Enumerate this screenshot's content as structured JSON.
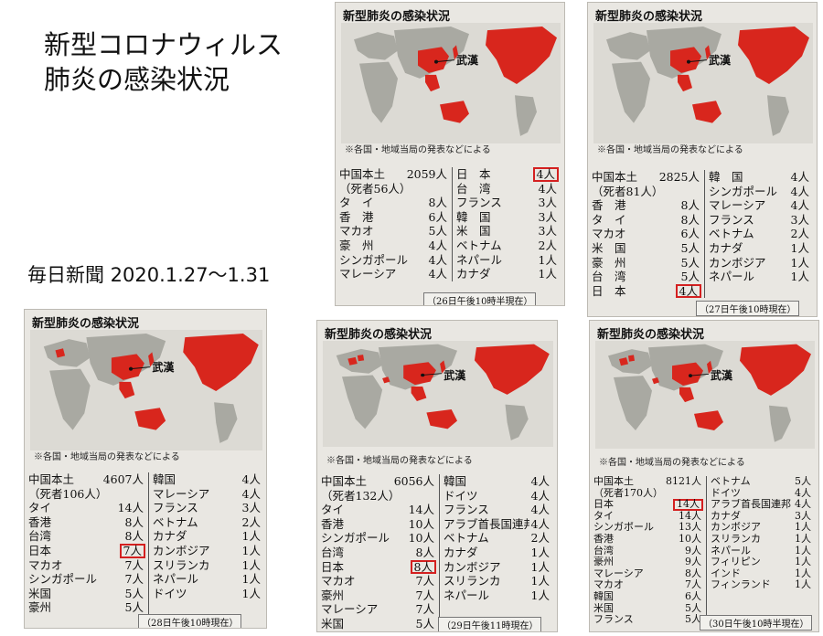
{
  "heading": {
    "line1": "新型コロナウィルス",
    "line2": "肺炎の感染状況"
  },
  "source": "毎日新聞 2020.1.27〜1.31",
  "colors": {
    "infected": "#d8261d",
    "land": "#a9a9a2",
    "sea": "#dcdad4",
    "highlight": "#d42020"
  },
  "clips": [
    {
      "title": "新型肺炎の感染状況",
      "wuhan": "武漢",
      "note": "※各国・地域当局の発表などによる",
      "left": [
        {
          "name": "中国本土",
          "value": "2059人"
        },
        {
          "name": "（死者56人）",
          "value": ""
        },
        {
          "name": "タ　イ",
          "value": "8人"
        },
        {
          "name": "香　港",
          "value": "6人"
        },
        {
          "name": "マカオ",
          "value": "5人"
        },
        {
          "name": "豪　州",
          "value": "4人"
        },
        {
          "name": "シンガポール",
          "value": "4人"
        },
        {
          "name": "マレーシア",
          "value": "4人"
        }
      ],
      "right": [
        {
          "name": "日　本",
          "value": "4人",
          "hl": true
        },
        {
          "name": "台　湾",
          "value": "4人"
        },
        {
          "name": "フランス",
          "value": "3人"
        },
        {
          "name": "韓　国",
          "value": "3人"
        },
        {
          "name": "米　国",
          "value": "3人"
        },
        {
          "name": "ベトナム",
          "value": "2人"
        },
        {
          "name": "ネパール",
          "value": "1人"
        },
        {
          "name": "カナダ",
          "value": "1人"
        }
      ],
      "footnote": "（26日午後10時半現在）"
    },
    {
      "title": "新型肺炎の感染状況",
      "wuhan": "武漢",
      "note": "※各国・地域当局の発表などによる",
      "left": [
        {
          "name": "中国本土",
          "value": "2825人"
        },
        {
          "name": "（死者81人）",
          "value": ""
        },
        {
          "name": "香　港",
          "value": "8人"
        },
        {
          "name": "タ　イ",
          "value": "8人"
        },
        {
          "name": "マカオ",
          "value": "6人"
        },
        {
          "name": "米　国",
          "value": "5人"
        },
        {
          "name": "豪　州",
          "value": "5人"
        },
        {
          "name": "台　湾",
          "value": "5人"
        },
        {
          "name": "日　本",
          "value": "4人",
          "hl": true
        }
      ],
      "right": [
        {
          "name": "韓　国",
          "value": "4人"
        },
        {
          "name": "シンガポール",
          "value": "4人"
        },
        {
          "name": "マレーシア",
          "value": "4人"
        },
        {
          "name": "フランス",
          "value": "3人"
        },
        {
          "name": "ベトナム",
          "value": "2人"
        },
        {
          "name": "カナダ",
          "value": "1人"
        },
        {
          "name": "カンボジア",
          "value": "1人"
        },
        {
          "name": "ネパール",
          "value": "1人"
        }
      ],
      "footnote": "（27日午後10時現在）"
    },
    {
      "title": "新型肺炎の感染状況",
      "wuhan": "武漢",
      "note": "※各国・地域当局の発表などによる",
      "left": [
        {
          "name": "中国本土",
          "value": "4607人"
        },
        {
          "name": "（死者106人）",
          "value": ""
        },
        {
          "name": "タイ",
          "value": "14人"
        },
        {
          "name": "香港",
          "value": "8人"
        },
        {
          "name": "台湾",
          "value": "8人"
        },
        {
          "name": "日本",
          "value": "7人",
          "hl": true
        },
        {
          "name": "マカオ",
          "value": "7人"
        },
        {
          "name": "シンガポール",
          "value": "7人"
        },
        {
          "name": "米国",
          "value": "5人"
        },
        {
          "name": "豪州",
          "value": "5人"
        }
      ],
      "right": [
        {
          "name": "韓国",
          "value": "4人"
        },
        {
          "name": "マレーシア",
          "value": "4人"
        },
        {
          "name": "フランス",
          "value": "3人"
        },
        {
          "name": "ベトナム",
          "value": "2人"
        },
        {
          "name": "カナダ",
          "value": "1人"
        },
        {
          "name": "カンボジア",
          "value": "1人"
        },
        {
          "name": "スリランカ",
          "value": "1人"
        },
        {
          "name": "ネパール",
          "value": "1人"
        },
        {
          "name": "ドイツ",
          "value": "1人"
        }
      ],
      "footnote": "（28日午後10時現在）"
    },
    {
      "title": "新型肺炎の感染状況",
      "wuhan": "武漢",
      "note": "※各国・地域当局の発表などによる",
      "left": [
        {
          "name": "中国本土",
          "value": "6056人"
        },
        {
          "name": "（死者132人）",
          "value": ""
        },
        {
          "name": "タイ",
          "value": "14人"
        },
        {
          "name": "香港",
          "value": "10人"
        },
        {
          "name": "シンガポール",
          "value": "10人"
        },
        {
          "name": "台湾",
          "value": "8人"
        },
        {
          "name": "日本",
          "value": "8人",
          "hl": true
        },
        {
          "name": "マカオ",
          "value": "7人"
        },
        {
          "name": "豪州",
          "value": "7人"
        },
        {
          "name": "マレーシア",
          "value": "7人"
        },
        {
          "name": "米国",
          "value": "5人"
        }
      ],
      "right": [
        {
          "name": "韓国",
          "value": "4人"
        },
        {
          "name": "ドイツ",
          "value": "4人"
        },
        {
          "name": "フランス",
          "value": "4人"
        },
        {
          "name": "アラブ首長国連邦（UAE）",
          "value": "4人"
        },
        {
          "name": "ベトナム",
          "value": "2人"
        },
        {
          "name": "カナダ",
          "value": "1人"
        },
        {
          "name": "カンボジア",
          "value": "1人"
        },
        {
          "name": "スリランカ",
          "value": "1人"
        },
        {
          "name": "ネパール",
          "value": "1人"
        }
      ],
      "footnote": "（29日午後11時現在）"
    },
    {
      "title": "新型肺炎の感染状況",
      "wuhan": "武漢",
      "note": "※各国・地域当局の発表などによる",
      "left": [
        {
          "name": "中国本土",
          "value": "8121人"
        },
        {
          "name": "（死者170人）",
          "value": ""
        },
        {
          "name": "日本",
          "value": "14人",
          "hl": true
        },
        {
          "name": "タイ",
          "value": "14人"
        },
        {
          "name": "シンガポール",
          "value": "13人"
        },
        {
          "name": "香港",
          "value": "10人"
        },
        {
          "name": "台湾",
          "value": "9人"
        },
        {
          "name": "豪州",
          "value": "9人"
        },
        {
          "name": "マレーシア",
          "value": "8人"
        },
        {
          "name": "マカオ",
          "value": "7人"
        },
        {
          "name": "韓国",
          "value": "6人"
        },
        {
          "name": "米国",
          "value": "5人"
        },
        {
          "name": "フランス",
          "value": "5人"
        }
      ],
      "right": [
        {
          "name": "ベトナム",
          "value": "5人"
        },
        {
          "name": "ドイツ",
          "value": "4人"
        },
        {
          "name": "アラブ首長国連邦（UAE）",
          "value": "4人"
        },
        {
          "name": "カナダ",
          "value": "3人"
        },
        {
          "name": "カンボジア",
          "value": "1人"
        },
        {
          "name": "スリランカ",
          "value": "1人"
        },
        {
          "name": "ネパール",
          "value": "1人"
        },
        {
          "name": "フィリピン",
          "value": "1人"
        },
        {
          "name": "インド",
          "value": "1人"
        },
        {
          "name": "フィンランド",
          "value": "1人"
        }
      ],
      "footnote": "（30日午後10時半現在）"
    }
  ]
}
